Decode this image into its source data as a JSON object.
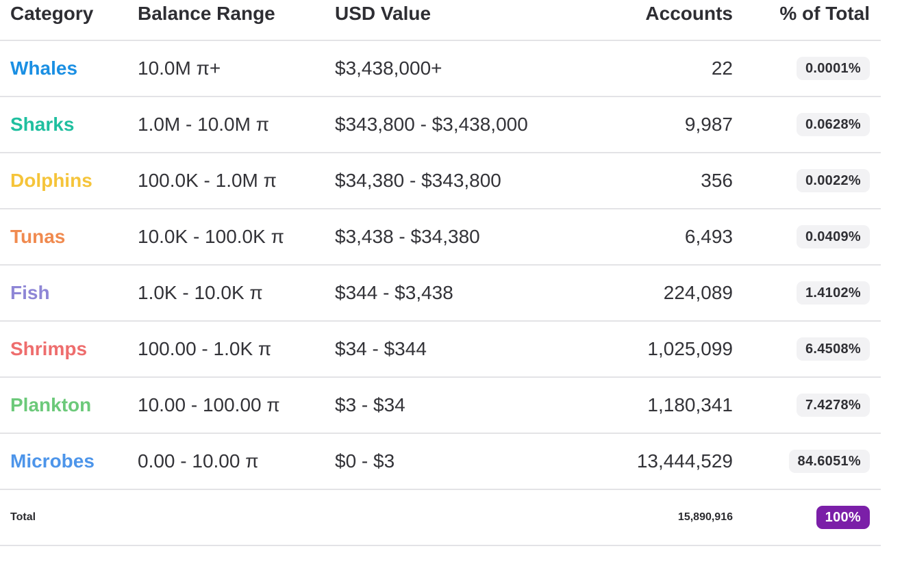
{
  "header": {
    "category": "Category",
    "balance_range": "Balance Range",
    "usd_value": "USD Value",
    "accounts": "Accounts",
    "pct_total": "% of Total"
  },
  "rows": [
    {
      "category": "Whales",
      "color": "#1a8fe3",
      "balance_range": "10.0M π+",
      "usd_value": "$3,438,000+",
      "accounts": "22",
      "pct": "0.0001%"
    },
    {
      "category": "Sharks",
      "color": "#1fbf9f",
      "balance_range": "1.0M - 10.0M π",
      "usd_value": "$343,800 - $3,438,000",
      "accounts": "9,987",
      "pct": "0.0628%"
    },
    {
      "category": "Dolphins",
      "color": "#f5c43a",
      "balance_range": "100.0K - 1.0M π",
      "usd_value": "$34,380 - $343,800",
      "accounts": "356",
      "pct": "0.0022%"
    },
    {
      "category": "Tunas",
      "color": "#f08a4f",
      "balance_range": "10.0K - 100.0K π",
      "usd_value": "$3,438 - $34,380",
      "accounts": "6,493",
      "pct": "0.0409%"
    },
    {
      "category": "Fish",
      "color": "#8e86d6",
      "balance_range": "1.0K - 10.0K π",
      "usd_value": "$344 - $3,438",
      "accounts": "224,089",
      "pct": "1.4102%"
    },
    {
      "category": "Shrimps",
      "color": "#ee6d6d",
      "balance_range": "100.00 - 1.0K π",
      "usd_value": "$34 - $344",
      "accounts": "1,025,099",
      "pct": "6.4508%"
    },
    {
      "category": "Plankton",
      "color": "#6cc97a",
      "balance_range": "10.00 - 100.00 π",
      "usd_value": "$3 - $34",
      "accounts": "1,180,341",
      "pct": "7.4278%"
    },
    {
      "category": "Microbes",
      "color": "#4d95ea",
      "balance_range": "0.00 - 10.00 π",
      "usd_value": "$0 - $3",
      "accounts": "13,444,529",
      "pct": "84.6051%"
    }
  ],
  "total": {
    "label": "Total",
    "accounts": "15,890,916",
    "pct": "100%",
    "badge_color": "#7b1fa8"
  }
}
